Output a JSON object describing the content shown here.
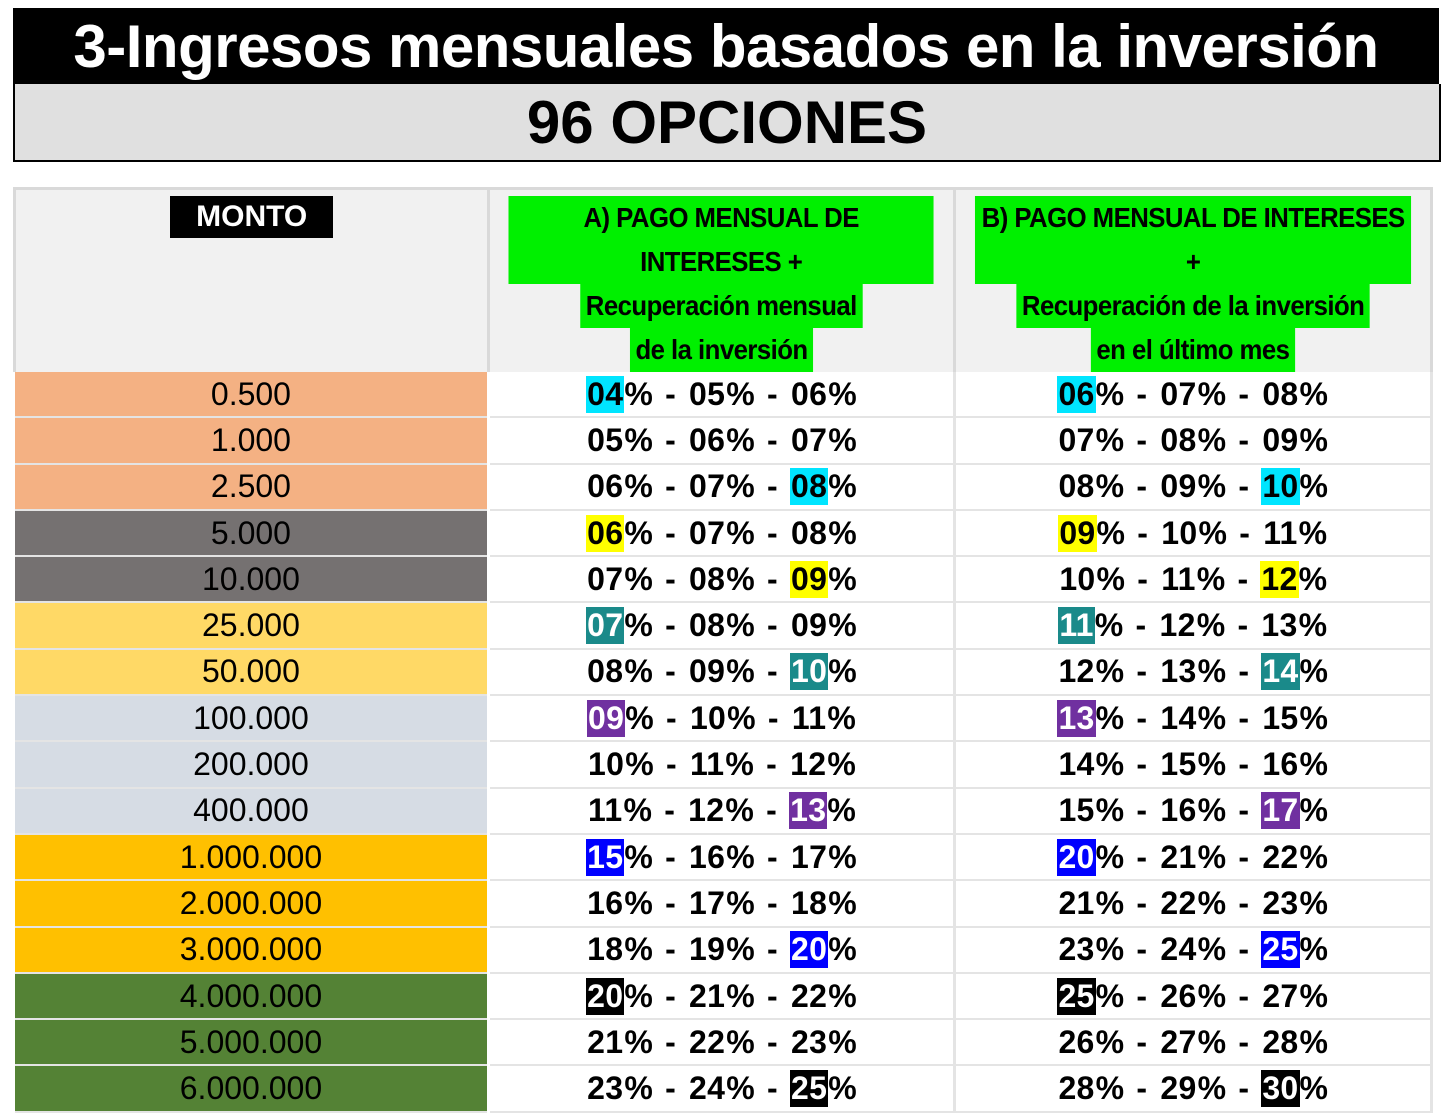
{
  "header": {
    "title": "3-Ingresos mensuales basados en la inversión",
    "subtitle": "96 OPCIONES"
  },
  "table": {
    "col_monto": "MONTO",
    "col_a": [
      "A)  PAGO MENSUAL DE INTERESES +",
      "Recuperación mensual",
      "de la inversión"
    ],
    "col_b": [
      "B)  PAGO MENSUAL DE INTERESES +",
      "Recuperación de la inversión",
      "en el último mes"
    ],
    "rows": [
      {
        "amount": "0.500",
        "bg": "#f4b183",
        "fg": "#000000",
        "a": [
          "04",
          "05",
          "06"
        ],
        "a_hl": 0,
        "a_hl_color": "#00e5ff",
        "a_hl_text": "#000000",
        "b": [
          "06",
          "07",
          "08"
        ],
        "b_hl": 0,
        "b_hl_color": "#00e5ff",
        "b_hl_text": "#000000"
      },
      {
        "amount": "1.000",
        "bg": "#f4b183",
        "fg": "#000000",
        "a": [
          "05",
          "06",
          "07"
        ],
        "a_hl": -1,
        "b": [
          "07",
          "08",
          "09"
        ],
        "b_hl": -1
      },
      {
        "amount": "2.500",
        "bg": "#f4b183",
        "fg": "#000000",
        "a": [
          "06",
          "07",
          "08"
        ],
        "a_hl": 2,
        "a_hl_color": "#00e5ff",
        "a_hl_text": "#000000",
        "b": [
          "08",
          "09",
          "10"
        ],
        "b_hl": 2,
        "b_hl_color": "#00e5ff",
        "b_hl_text": "#000000"
      },
      {
        "amount": "5.000",
        "bg": "#757171",
        "fg": "#000000",
        "a": [
          "06",
          "07",
          "08"
        ],
        "a_hl": 0,
        "a_hl_color": "#ffff00",
        "a_hl_text": "#000000",
        "b": [
          "09",
          "10",
          "11"
        ],
        "b_hl": 0,
        "b_hl_color": "#ffff00",
        "b_hl_text": "#000000"
      },
      {
        "amount": "10.000",
        "bg": "#757171",
        "fg": "#000000",
        "a": [
          "07",
          "08",
          "09"
        ],
        "a_hl": 2,
        "a_hl_color": "#ffff00",
        "a_hl_text": "#000000",
        "b": [
          "10",
          "11",
          "12"
        ],
        "b_hl": 2,
        "b_hl_color": "#ffff00",
        "b_hl_text": "#000000"
      },
      {
        "amount": "25.000",
        "bg": "#ffd966",
        "fg": "#000000",
        "a": [
          "07",
          "08",
          "09"
        ],
        "a_hl": 0,
        "a_hl_color": "#1a8a8a",
        "a_hl_text": "#ffffff",
        "b": [
          "11",
          "12",
          "13"
        ],
        "b_hl": 0,
        "b_hl_color": "#1a8a8a",
        "b_hl_text": "#ffffff"
      },
      {
        "amount": "50.000",
        "bg": "#ffd966",
        "fg": "#000000",
        "a": [
          "08",
          "09",
          "10"
        ],
        "a_hl": 2,
        "a_hl_color": "#1a8a8a",
        "a_hl_text": "#ffffff",
        "b": [
          "12",
          "13",
          "14"
        ],
        "b_hl": 2,
        "b_hl_color": "#1a8a8a",
        "b_hl_text": "#ffffff"
      },
      {
        "amount": "100.000",
        "bg": "#d6dce4",
        "fg": "#000000",
        "a": [
          "09",
          "10",
          "11"
        ],
        "a_hl": 0,
        "a_hl_color": "#7030a0",
        "a_hl_text": "#ffffff",
        "b": [
          "13",
          "14",
          "15"
        ],
        "b_hl": 0,
        "b_hl_color": "#7030a0",
        "b_hl_text": "#ffffff"
      },
      {
        "amount": "200.000",
        "bg": "#d6dce4",
        "fg": "#000000",
        "a": [
          "10",
          "11",
          "12"
        ],
        "a_hl": -1,
        "b": [
          "14",
          "15",
          "16"
        ],
        "b_hl": -1
      },
      {
        "amount": "400.000",
        "bg": "#d6dce4",
        "fg": "#000000",
        "a": [
          "11",
          "12",
          "13"
        ],
        "a_hl": 2,
        "a_hl_color": "#7030a0",
        "a_hl_text": "#ffffff",
        "b": [
          "15",
          "16",
          "17"
        ],
        "b_hl": 2,
        "b_hl_color": "#7030a0",
        "b_hl_text": "#ffffff"
      },
      {
        "amount": "1.000.000",
        "bg": "#ffc000",
        "fg": "#000000",
        "a": [
          "15",
          "16",
          "17"
        ],
        "a_hl": 0,
        "a_hl_color": "#0000ff",
        "a_hl_text": "#ffffff",
        "b": [
          "20",
          "21",
          "22"
        ],
        "b_hl": 0,
        "b_hl_color": "#0000ff",
        "b_hl_text": "#ffffff"
      },
      {
        "amount": "2.000.000",
        "bg": "#ffc000",
        "fg": "#000000",
        "a": [
          "16",
          "17",
          "18"
        ],
        "a_hl": -1,
        "b": [
          "21",
          "22",
          "23"
        ],
        "b_hl": -1
      },
      {
        "amount": "3.000.000",
        "bg": "#ffc000",
        "fg": "#000000",
        "a": [
          "18",
          "19",
          "20"
        ],
        "a_hl": 2,
        "a_hl_color": "#0000ff",
        "a_hl_text": "#ffffff",
        "b": [
          "23",
          "24",
          "25"
        ],
        "b_hl": 2,
        "b_hl_color": "#0000ff",
        "b_hl_text": "#ffffff"
      },
      {
        "amount": "4.000.000",
        "bg": "#548235",
        "fg": "#000000",
        "a": [
          "20",
          "21",
          "22"
        ],
        "a_hl": 0,
        "a_hl_color": "#000000",
        "a_hl_text": "#ffffff",
        "b": [
          "25",
          "26",
          "27"
        ],
        "b_hl": 0,
        "b_hl_color": "#000000",
        "b_hl_text": "#ffffff"
      },
      {
        "amount": "5.000.000",
        "bg": "#548235",
        "fg": "#000000",
        "a": [
          "21",
          "22",
          "23"
        ],
        "a_hl": -1,
        "b": [
          "26",
          "27",
          "28"
        ],
        "b_hl": -1
      },
      {
        "amount": "6.000.000",
        "bg": "#548235",
        "fg": "#000000",
        "a": [
          "23",
          "24",
          "25"
        ],
        "a_hl": 2,
        "a_hl_color": "#000000",
        "a_hl_text": "#ffffff",
        "b": [
          "28",
          "29",
          "30"
        ],
        "b_hl": 2,
        "b_hl_color": "#000000",
        "b_hl_text": "#ffffff"
      }
    ]
  }
}
